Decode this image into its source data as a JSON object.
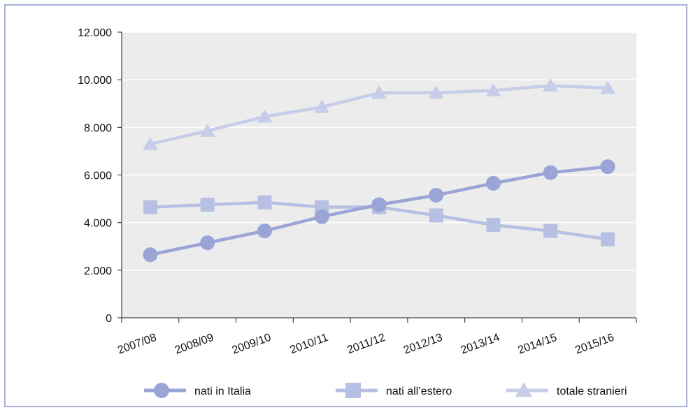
{
  "chart_data": {
    "type": "line",
    "categories": [
      "2007/08",
      "2008/09",
      "2009/10",
      "2010/11",
      "2011/12",
      "2012/13",
      "2013/14",
      "2014/15",
      "2015/16"
    ],
    "y_ticks": [
      "0",
      "2.000",
      "4.000",
      "6.000",
      "8.000",
      "10.000",
      "12.000"
    ],
    "ylim": [
      0,
      12000
    ],
    "grid": "horizontal",
    "legend_position": "bottom",
    "series": [
      {
        "name": "nati in Italia",
        "marker": "circle",
        "color": "#9aa4d6",
        "values": [
          2650,
          3150,
          3650,
          4250,
          4750,
          5150,
          5650,
          6100,
          6350
        ]
      },
      {
        "name": "nati all’estero",
        "marker": "square",
        "color": "#b7c0e3",
        "values": [
          4650,
          4750,
          4850,
          4650,
          4650,
          4300,
          3900,
          3650,
          3300
        ]
      },
      {
        "name": "totale stranieri",
        "marker": "triangle",
        "color": "#c7cde9",
        "values": [
          7300,
          7850,
          8450,
          8850,
          9450,
          9450,
          9550,
          9750,
          9650
        ]
      }
    ]
  },
  "colors": {
    "frame_border": "#a9b0d9",
    "plot_background": "#ececec",
    "gridline": "#ffffff",
    "axis": "#222222"
  }
}
